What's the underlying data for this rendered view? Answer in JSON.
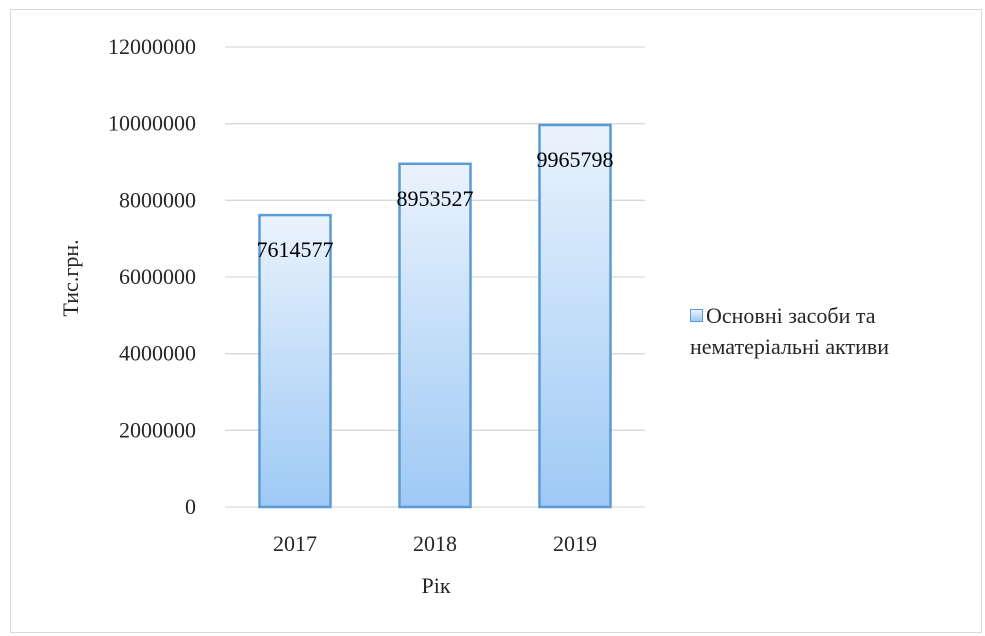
{
  "chart_data": {
    "type": "bar",
    "categories": [
      "2017",
      "2018",
      "2019"
    ],
    "series": [
      {
        "name": "Основні засоби та нематеріальні активи",
        "values": [
          7614577,
          8953527,
          9965798
        ]
      }
    ],
    "data_labels": [
      "7614577",
      "8953527",
      "9965798"
    ],
    "xlabel": "Рік",
    "ylabel": "Тис.грн.",
    "ylim": [
      0,
      12000000
    ],
    "yticks": [
      "0",
      "2000000",
      "4000000",
      "6000000",
      "8000000",
      "10000000",
      "12000000"
    ],
    "grid": true,
    "legend_position": "right",
    "legend_lines": [
      "Основні засоби та",
      "нематеріальні активи"
    ],
    "colors": {
      "bar_top": "#eaf3fd",
      "bar_bottom": "#9ec9f5",
      "bar_border": "#5b9bd5",
      "grid": "#d9d9d9"
    }
  }
}
